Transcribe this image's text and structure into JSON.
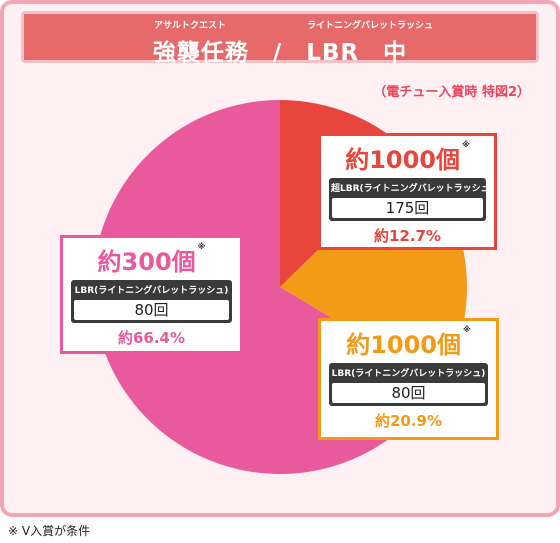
{
  "header": {
    "ruby_left": "アサルトクエスト",
    "ruby_right": "ライトニングバレットラッシュ",
    "title": "強襲任務　/　LBR　中"
  },
  "subtitle": "（電チュー入賞時 特図2）",
  "footnote": "※ V入賞が条件",
  "colors": {
    "red": "#e8453c",
    "orange": "#f39a17",
    "pink": "#e85a9c",
    "frame": "#f4a6b4",
    "header": "#e76a6a"
  },
  "chart_data": {
    "type": "pie",
    "title": "",
    "slices": [
      {
        "amount": "約1000個",
        "note": "※",
        "mode": "超LBR(ライトニングバレットラッシュ)",
        "games": "175回",
        "percent_label": "約12.7%",
        "value": 12.7,
        "color": "#e8453c"
      },
      {
        "amount": "約1000個",
        "note": "※",
        "mode": "LBR(ライトニングバレットラッシュ)",
        "games": "80回",
        "percent_label": "約20.9%",
        "value": 20.9,
        "color": "#f39a17"
      },
      {
        "amount": "約300個",
        "note": "※",
        "mode": "LBR(ライトニングバレットラッシュ)",
        "games": "80回",
        "percent_label": "約66.4%",
        "value": 66.4,
        "color": "#e85a9c"
      }
    ]
  }
}
